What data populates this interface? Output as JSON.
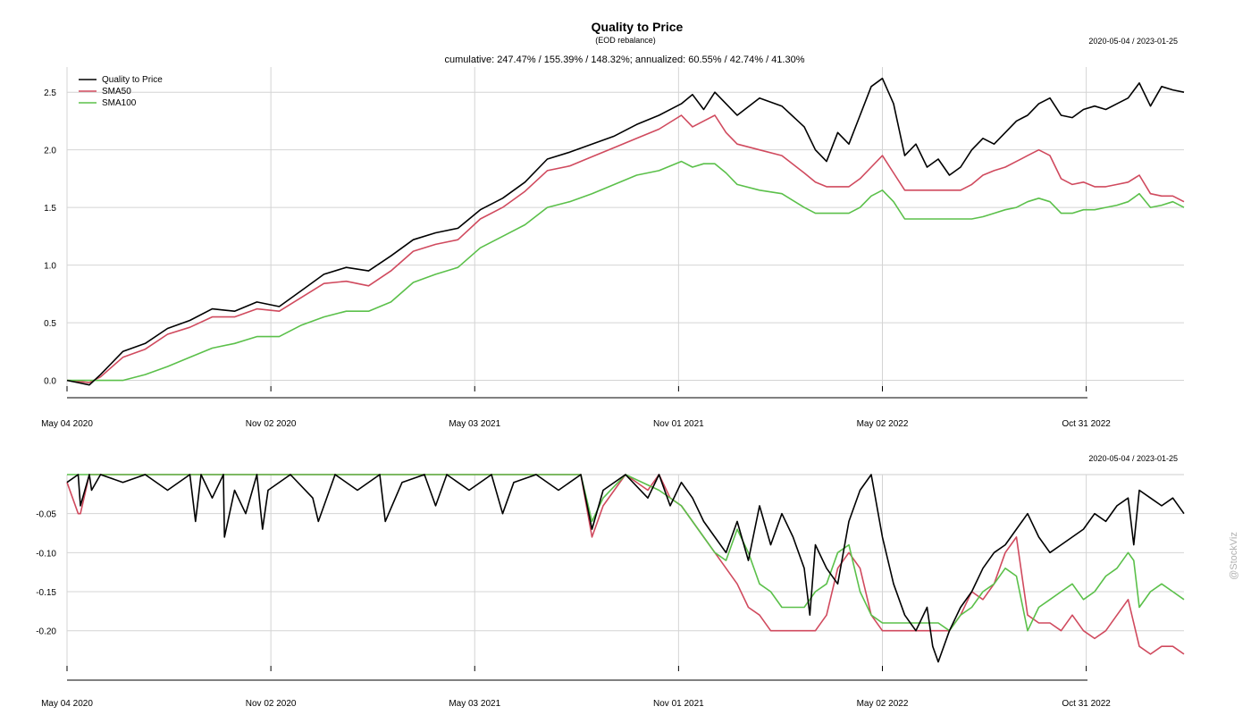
{
  "chart_data": [
    {
      "type": "line",
      "panel": "performance",
      "title": "Quality to Price",
      "subtitle": "(EOD rebalance)",
      "date_range": "2020-05-04 / 2023-01-25",
      "stats_line": "cumulative: 247.47% / 155.39% / 148.32%; annualized: 60.55% / 42.74% / 41.30%",
      "x_ticks": [
        "May 04 2020",
        "Nov 02 2020",
        "May 03 2021",
        "Nov 01 2021",
        "May 02 2022",
        "Oct 31 2022"
      ],
      "x_tick_positions": [
        0,
        0.1825,
        0.365,
        0.5475,
        0.73,
        0.9125
      ],
      "y_ticks": [
        "0.0",
        "0.5",
        "1.0",
        "1.5",
        "2.0",
        "2.5"
      ],
      "y_tick_values": [
        0,
        0.5,
        1.0,
        1.5,
        2.0,
        2.5
      ],
      "ylim": [
        -0.05,
        2.68
      ],
      "legend_location": "top-left",
      "series": [
        {
          "name": "Quality to Price",
          "color": "#000000",
          "x": [
            0,
            0.01,
            0.02,
            0.03,
            0.05,
            0.07,
            0.09,
            0.11,
            0.13,
            0.15,
            0.17,
            0.19,
            0.21,
            0.23,
            0.25,
            0.27,
            0.29,
            0.31,
            0.33,
            0.35,
            0.37,
            0.39,
            0.41,
            0.43,
            0.45,
            0.47,
            0.49,
            0.51,
            0.53,
            0.55,
            0.56,
            0.57,
            0.58,
            0.59,
            0.6,
            0.62,
            0.64,
            0.66,
            0.67,
            0.68,
            0.69,
            0.7,
            0.71,
            0.72,
            0.73,
            0.74,
            0.75,
            0.76,
            0.77,
            0.78,
            0.79,
            0.8,
            0.81,
            0.82,
            0.83,
            0.84,
            0.85,
            0.86,
            0.87,
            0.88,
            0.89,
            0.9,
            0.91,
            0.92,
            0.93,
            0.94,
            0.95,
            0.96,
            0.97,
            0.98,
            0.99,
            1.0
          ],
          "values": [
            0.0,
            -0.02,
            -0.04,
            0.05,
            0.25,
            0.32,
            0.45,
            0.52,
            0.62,
            0.6,
            0.68,
            0.64,
            0.78,
            0.92,
            0.98,
            0.95,
            1.08,
            1.22,
            1.28,
            1.32,
            1.48,
            1.58,
            1.72,
            1.92,
            1.98,
            2.05,
            2.12,
            2.22,
            2.3,
            2.4,
            2.48,
            2.35,
            2.5,
            2.4,
            2.3,
            2.45,
            2.38,
            2.2,
            2.0,
            1.9,
            2.15,
            2.05,
            2.3,
            2.55,
            2.62,
            2.4,
            1.95,
            2.05,
            1.85,
            1.92,
            1.78,
            1.85,
            2.0,
            2.1,
            2.05,
            2.15,
            2.25,
            2.3,
            2.4,
            2.45,
            2.3,
            2.28,
            2.35,
            2.38,
            2.35,
            2.4,
            2.45,
            2.58,
            2.38,
            2.55,
            2.52,
            2.5
          ]
        },
        {
          "name": "SMA50",
          "color": "#d04a5e",
          "x": [
            0,
            0.01,
            0.02,
            0.03,
            0.05,
            0.07,
            0.09,
            0.11,
            0.13,
            0.15,
            0.17,
            0.19,
            0.21,
            0.23,
            0.25,
            0.27,
            0.29,
            0.31,
            0.33,
            0.35,
            0.37,
            0.39,
            0.41,
            0.43,
            0.45,
            0.47,
            0.49,
            0.51,
            0.53,
            0.55,
            0.56,
            0.57,
            0.58,
            0.59,
            0.6,
            0.62,
            0.64,
            0.66,
            0.67,
            0.68,
            0.69,
            0.7,
            0.71,
            0.72,
            0.73,
            0.74,
            0.75,
            0.76,
            0.77,
            0.78,
            0.79,
            0.8,
            0.81,
            0.82,
            0.83,
            0.84,
            0.85,
            0.86,
            0.87,
            0.88,
            0.89,
            0.9,
            0.91,
            0.92,
            0.93,
            0.94,
            0.95,
            0.96,
            0.97,
            0.98,
            0.99,
            1.0
          ],
          "values": [
            0.0,
            -0.01,
            -0.02,
            0.03,
            0.2,
            0.27,
            0.4,
            0.46,
            0.55,
            0.55,
            0.62,
            0.6,
            0.72,
            0.84,
            0.86,
            0.82,
            0.95,
            1.12,
            1.18,
            1.22,
            1.4,
            1.5,
            1.64,
            1.82,
            1.86,
            1.94,
            2.02,
            2.1,
            2.18,
            2.3,
            2.2,
            2.25,
            2.3,
            2.15,
            2.05,
            2.0,
            1.95,
            1.8,
            1.72,
            1.68,
            1.68,
            1.68,
            1.75,
            1.85,
            1.95,
            1.8,
            1.65,
            1.65,
            1.65,
            1.65,
            1.65,
            1.65,
            1.7,
            1.78,
            1.82,
            1.85,
            1.9,
            1.95,
            2.0,
            1.95,
            1.75,
            1.7,
            1.72,
            1.68,
            1.68,
            1.7,
            1.72,
            1.78,
            1.62,
            1.6,
            1.6,
            1.55
          ]
        },
        {
          "name": "SMA100",
          "color": "#5bc04a",
          "x": [
            0,
            0.01,
            0.02,
            0.03,
            0.05,
            0.07,
            0.09,
            0.11,
            0.13,
            0.15,
            0.17,
            0.19,
            0.21,
            0.23,
            0.25,
            0.27,
            0.29,
            0.31,
            0.33,
            0.35,
            0.37,
            0.39,
            0.41,
            0.43,
            0.45,
            0.47,
            0.49,
            0.51,
            0.53,
            0.55,
            0.56,
            0.57,
            0.58,
            0.59,
            0.6,
            0.62,
            0.64,
            0.66,
            0.67,
            0.68,
            0.69,
            0.7,
            0.71,
            0.72,
            0.73,
            0.74,
            0.75,
            0.76,
            0.77,
            0.78,
            0.79,
            0.8,
            0.81,
            0.82,
            0.83,
            0.84,
            0.85,
            0.86,
            0.87,
            0.88,
            0.89,
            0.9,
            0.91,
            0.92,
            0.93,
            0.94,
            0.95,
            0.96,
            0.97,
            0.98,
            0.99,
            1.0
          ],
          "values": [
            0.0,
            0.0,
            0.0,
            0.0,
            0.0,
            0.05,
            0.12,
            0.2,
            0.28,
            0.32,
            0.38,
            0.38,
            0.48,
            0.55,
            0.6,
            0.6,
            0.68,
            0.85,
            0.92,
            0.98,
            1.15,
            1.25,
            1.35,
            1.5,
            1.55,
            1.62,
            1.7,
            1.78,
            1.82,
            1.9,
            1.85,
            1.88,
            1.88,
            1.8,
            1.7,
            1.65,
            1.62,
            1.5,
            1.45,
            1.45,
            1.45,
            1.45,
            1.5,
            1.6,
            1.65,
            1.55,
            1.4,
            1.4,
            1.4,
            1.4,
            1.4,
            1.4,
            1.4,
            1.42,
            1.45,
            1.48,
            1.5,
            1.55,
            1.58,
            1.55,
            1.45,
            1.45,
            1.48,
            1.48,
            1.5,
            1.52,
            1.55,
            1.62,
            1.5,
            1.52,
            1.55,
            1.5
          ]
        }
      ]
    },
    {
      "type": "line",
      "panel": "drawdown",
      "date_range": "2020-05-04 / 2023-01-25",
      "x_ticks": [
        "May 04 2020",
        "Nov 02 2020",
        "May 03 2021",
        "Nov 01 2021",
        "May 02 2022",
        "Oct 31 2022"
      ],
      "x_tick_positions": [
        0,
        0.1825,
        0.365,
        0.5475,
        0.73,
        0.9125
      ],
      "y_ticks": [
        "-0.05",
        "-0.10",
        "-0.15",
        "-0.20"
      ],
      "y_tick_values": [
        -0.05,
        -0.1,
        -0.15,
        -0.2
      ],
      "ylim": [
        -0.245,
        0.0
      ],
      "series": [
        {
          "name": "Quality to Price",
          "color": "#000000",
          "x": [
            0,
            0.01,
            0.012,
            0.02,
            0.022,
            0.03,
            0.05,
            0.07,
            0.09,
            0.11,
            0.115,
            0.12,
            0.13,
            0.14,
            0.141,
            0.15,
            0.16,
            0.17,
            0.175,
            0.18,
            0.2,
            0.22,
            0.225,
            0.24,
            0.26,
            0.28,
            0.285,
            0.3,
            0.32,
            0.33,
            0.34,
            0.36,
            0.38,
            0.39,
            0.4,
            0.42,
            0.44,
            0.46,
            0.47,
            0.48,
            0.5,
            0.52,
            0.53,
            0.54,
            0.55,
            0.56,
            0.57,
            0.58,
            0.59,
            0.6,
            0.61,
            0.62,
            0.63,
            0.64,
            0.65,
            0.66,
            0.665,
            0.67,
            0.68,
            0.69,
            0.7,
            0.71,
            0.72,
            0.73,
            0.74,
            0.75,
            0.76,
            0.77,
            0.775,
            0.78,
            0.79,
            0.8,
            0.81,
            0.82,
            0.83,
            0.84,
            0.85,
            0.86,
            0.87,
            0.88,
            0.89,
            0.9,
            0.91,
            0.92,
            0.93,
            0.94,
            0.95,
            0.955,
            0.96,
            0.97,
            0.98,
            0.99,
            1.0
          ],
          "values": [
            -0.01,
            0.0,
            -0.04,
            0.0,
            -0.02,
            0.0,
            -0.01,
            0.0,
            -0.02,
            0.0,
            -0.06,
            0.0,
            -0.03,
            0.0,
            -0.08,
            -0.02,
            -0.05,
            0.0,
            -0.07,
            -0.02,
            0.0,
            -0.03,
            -0.06,
            0.0,
            -0.02,
            0.0,
            -0.06,
            -0.01,
            0.0,
            -0.04,
            0.0,
            -0.02,
            0.0,
            -0.05,
            -0.01,
            0.0,
            -0.02,
            0.0,
            -0.07,
            -0.02,
            0.0,
            -0.03,
            0.0,
            -0.04,
            -0.01,
            -0.03,
            -0.06,
            -0.08,
            -0.1,
            -0.06,
            -0.11,
            -0.04,
            -0.09,
            -0.05,
            -0.08,
            -0.12,
            -0.18,
            -0.09,
            -0.12,
            -0.14,
            -0.06,
            -0.02,
            0.0,
            -0.08,
            -0.14,
            -0.18,
            -0.2,
            -0.17,
            -0.22,
            -0.24,
            -0.2,
            -0.17,
            -0.15,
            -0.12,
            -0.1,
            -0.09,
            -0.07,
            -0.05,
            -0.08,
            -0.1,
            -0.09,
            -0.08,
            -0.07,
            -0.05,
            -0.06,
            -0.04,
            -0.03,
            -0.09,
            -0.02,
            -0.03,
            -0.04,
            -0.03,
            -0.05
          ]
        },
        {
          "name": "SMA50",
          "color": "#d04a5e",
          "x": [
            0,
            0.01,
            0.012,
            0.02,
            0.03,
            0.05,
            0.1,
            0.2,
            0.3,
            0.4,
            0.44,
            0.46,
            0.47,
            0.48,
            0.5,
            0.52,
            0.53,
            0.54,
            0.55,
            0.56,
            0.57,
            0.58,
            0.59,
            0.6,
            0.61,
            0.62,
            0.63,
            0.64,
            0.65,
            0.66,
            0.67,
            0.68,
            0.69,
            0.7,
            0.71,
            0.72,
            0.73,
            0.74,
            0.75,
            0.76,
            0.77,
            0.78,
            0.79,
            0.8,
            0.81,
            0.82,
            0.83,
            0.84,
            0.85,
            0.86,
            0.87,
            0.88,
            0.89,
            0.9,
            0.91,
            0.92,
            0.93,
            0.94,
            0.95,
            0.96,
            0.97,
            0.98,
            0.99,
            1.0
          ],
          "values": [
            -0.01,
            -0.05,
            -0.05,
            0.0,
            0.0,
            0.0,
            0.0,
            0.0,
            0.0,
            0.0,
            0.0,
            0.0,
            -0.08,
            -0.04,
            0.0,
            -0.02,
            0.0,
            -0.03,
            -0.04,
            -0.06,
            -0.08,
            -0.1,
            -0.12,
            -0.14,
            -0.17,
            -0.18,
            -0.2,
            -0.2,
            -0.2,
            -0.2,
            -0.2,
            -0.18,
            -0.12,
            -0.1,
            -0.12,
            -0.18,
            -0.2,
            -0.2,
            -0.2,
            -0.2,
            -0.2,
            -0.2,
            -0.2,
            -0.18,
            -0.15,
            -0.16,
            -0.14,
            -0.1,
            -0.08,
            -0.18,
            -0.19,
            -0.19,
            -0.2,
            -0.18,
            -0.2,
            -0.21,
            -0.2,
            -0.18,
            -0.16,
            -0.22,
            -0.23,
            -0.22,
            -0.22,
            -0.23
          ]
        },
        {
          "name": "SMA100",
          "color": "#5bc04a",
          "x": [
            0,
            0.05,
            0.1,
            0.2,
            0.3,
            0.4,
            0.46,
            0.47,
            0.48,
            0.5,
            0.53,
            0.55,
            0.56,
            0.57,
            0.58,
            0.59,
            0.6,
            0.61,
            0.62,
            0.63,
            0.64,
            0.65,
            0.66,
            0.67,
            0.68,
            0.69,
            0.7,
            0.71,
            0.72,
            0.73,
            0.74,
            0.75,
            0.76,
            0.77,
            0.78,
            0.79,
            0.8,
            0.81,
            0.82,
            0.83,
            0.84,
            0.85,
            0.86,
            0.87,
            0.88,
            0.89,
            0.9,
            0.91,
            0.92,
            0.93,
            0.94,
            0.95,
            0.955,
            0.96,
            0.97,
            0.98,
            0.99,
            1.0
          ],
          "values": [
            0.0,
            0.0,
            0.0,
            0.0,
            0.0,
            0.0,
            0.0,
            -0.06,
            -0.03,
            0.0,
            -0.02,
            -0.04,
            -0.06,
            -0.08,
            -0.1,
            -0.11,
            -0.07,
            -0.1,
            -0.14,
            -0.15,
            -0.17,
            -0.17,
            -0.17,
            -0.15,
            -0.14,
            -0.1,
            -0.09,
            -0.15,
            -0.18,
            -0.19,
            -0.19,
            -0.19,
            -0.19,
            -0.19,
            -0.19,
            -0.2,
            -0.18,
            -0.17,
            -0.15,
            -0.14,
            -0.12,
            -0.13,
            -0.2,
            -0.17,
            -0.16,
            -0.15,
            -0.14,
            -0.16,
            -0.15,
            -0.13,
            -0.12,
            -0.1,
            -0.11,
            -0.17,
            -0.15,
            -0.14,
            -0.15,
            -0.16
          ]
        }
      ]
    }
  ],
  "watermark": "@StockViz"
}
